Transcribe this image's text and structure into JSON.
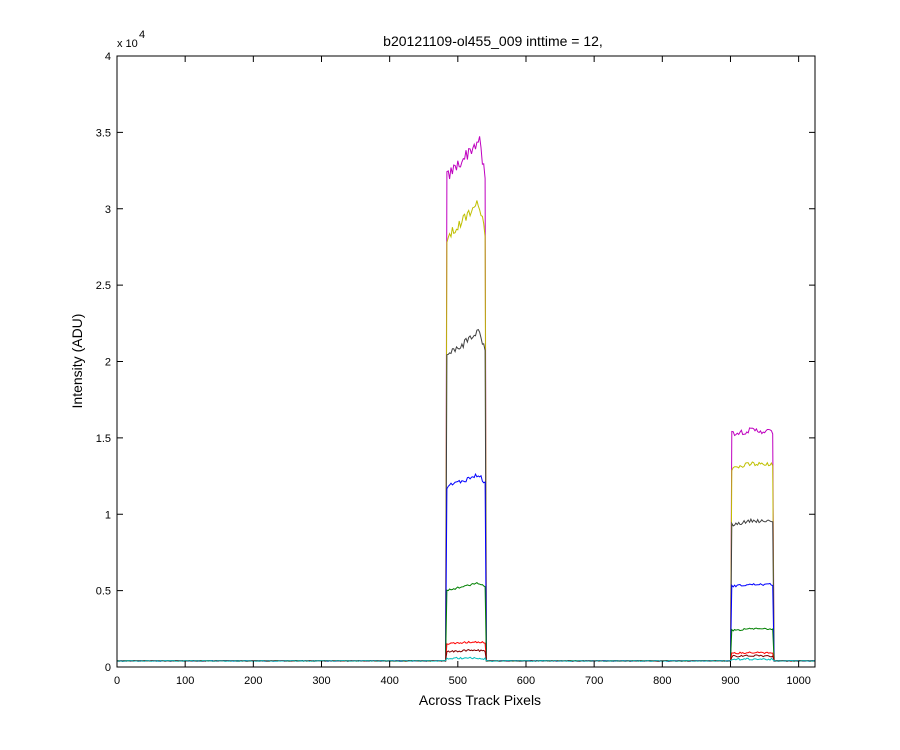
{
  "chart_data": {
    "type": "line",
    "title": "b20121109-ol455_009 inttime = 12,",
    "xlabel": "Across Track Pixels",
    "ylabel": "Intensity (ADU)",
    "xlim": [
      0,
      1024
    ],
    "ylim": [
      0,
      40000
    ],
    "x_ticks": [
      "0",
      "100",
      "200",
      "300",
      "400",
      "500",
      "600",
      "700",
      "800",
      "900",
      "1000"
    ],
    "y_ticks": [
      "0",
      "0.5",
      "1",
      "1.5",
      "2",
      "2.5",
      "3",
      "3.5",
      "4"
    ],
    "y_exponent_base": "x 10",
    "y_exponent_power": "4",
    "grid": false,
    "legend": "none",
    "series": [
      {
        "color": "#bf00bf",
        "baseline": 400,
        "bands": [
          {
            "start": 483,
            "end": 540,
            "left": 32000,
            "right": 32000,
            "peak": 34500,
            "peak_at": 0.85
          },
          {
            "start": 902,
            "end": 962,
            "left": 15300,
            "right": 15400,
            "peak": 15500,
            "peak_at": 0.5
          }
        ]
      },
      {
        "color": "#bfbf00",
        "baseline": 400,
        "bands": [
          {
            "start": 483,
            "end": 540,
            "left": 28000,
            "right": 28500,
            "peak": 30400,
            "peak_at": 0.85
          },
          {
            "start": 902,
            "end": 962,
            "left": 13000,
            "right": 13200,
            "peak": 13300,
            "peak_at": 0.5
          }
        ]
      },
      {
        "color": "#404040",
        "baseline": 400,
        "bands": [
          {
            "start": 483,
            "end": 540,
            "left": 20300,
            "right": 20800,
            "peak": 22000,
            "peak_at": 0.85
          },
          {
            "start": 902,
            "end": 962,
            "left": 9300,
            "right": 9500,
            "peak": 9600,
            "peak_at": 0.5
          }
        ]
      },
      {
        "color": "#0000ff",
        "baseline": 400,
        "bands": [
          {
            "start": 483,
            "end": 540,
            "left": 11800,
            "right": 12000,
            "peak": 12600,
            "peak_at": 0.85
          },
          {
            "start": 902,
            "end": 962,
            "left": 5300,
            "right": 5400,
            "peak": 5400,
            "peak_at": 0.5
          }
        ]
      },
      {
        "color": "#008000",
        "baseline": 400,
        "bands": [
          {
            "start": 483,
            "end": 540,
            "left": 5000,
            "right": 5200,
            "peak": 5500,
            "peak_at": 0.85
          },
          {
            "start": 902,
            "end": 962,
            "left": 2400,
            "right": 2500,
            "peak": 2500,
            "peak_at": 0.5
          }
        ]
      },
      {
        "color": "#ff0000",
        "baseline": 400,
        "bands": [
          {
            "start": 483,
            "end": 540,
            "left": 1500,
            "right": 1600,
            "peak": 1650,
            "peak_at": 0.7
          },
          {
            "start": 902,
            "end": 962,
            "left": 900,
            "right": 900,
            "peak": 950,
            "peak_at": 0.5
          }
        ]
      },
      {
        "color": "#800000",
        "baseline": 400,
        "bands": [
          {
            "start": 483,
            "end": 540,
            "left": 1000,
            "right": 1050,
            "peak": 1100,
            "peak_at": 0.7
          },
          {
            "start": 902,
            "end": 962,
            "left": 700,
            "right": 700,
            "peak": 750,
            "peak_at": 0.5
          }
        ]
      },
      {
        "color": "#00bfbf",
        "baseline": 400,
        "bands": [
          {
            "start": 483,
            "end": 540,
            "left": 550,
            "right": 550,
            "peak": 600,
            "peak_at": 0.5
          },
          {
            "start": 902,
            "end": 962,
            "left": 500,
            "right": 500,
            "peak": 520,
            "peak_at": 0.5
          }
        ]
      }
    ]
  }
}
